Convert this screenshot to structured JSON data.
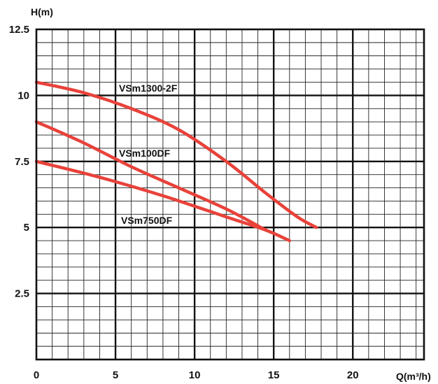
{
  "chart_data": {
    "type": "line",
    "title": "",
    "xlabel": "Q(m³/h)",
    "ylabel": "H(m)",
    "xlim": [
      0,
      24.5
    ],
    "ylim": [
      0,
      12.5
    ],
    "x_ticks": [
      "0",
      "5",
      "10",
      "15",
      "20"
    ],
    "y_ticks": [
      "12.5",
      "10",
      "7.5",
      "5",
      "2.5"
    ],
    "grid": true,
    "line_color": "#e8423a",
    "series": [
      {
        "name": "VSm1300-2F",
        "points": [
          [
            0,
            10.5
          ],
          [
            3,
            10.1
          ],
          [
            6,
            9.5
          ],
          [
            9,
            8.7
          ],
          [
            12,
            7.5
          ],
          [
            14.5,
            6.3
          ],
          [
            16.5,
            5.4
          ],
          [
            17.7,
            5.0
          ]
        ]
      },
      {
        "name": "VSm100DF",
        "points": [
          [
            0,
            9.0
          ],
          [
            3,
            8.2
          ],
          [
            6,
            7.3
          ],
          [
            9,
            6.5
          ],
          [
            12,
            5.7
          ],
          [
            14.5,
            4.9
          ]
        ]
      },
      {
        "name": "VSm750DF",
        "points": [
          [
            0,
            7.5
          ],
          [
            4,
            6.9
          ],
          [
            8,
            6.2
          ],
          [
            12,
            5.4
          ],
          [
            14.5,
            4.9
          ],
          [
            16,
            4.5
          ]
        ]
      }
    ]
  }
}
